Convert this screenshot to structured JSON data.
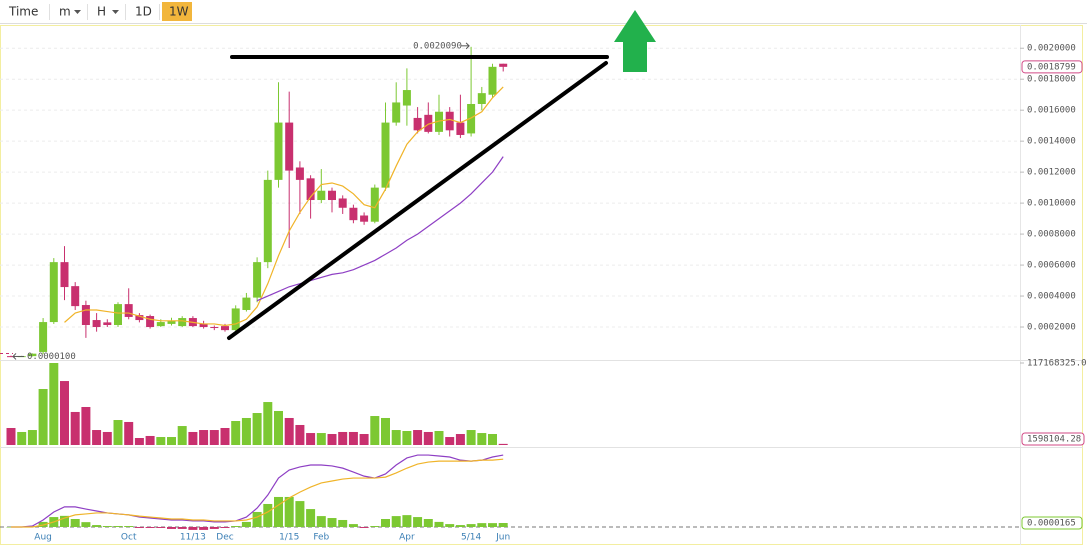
{
  "toolbar": {
    "items": [
      {
        "label": "Time"
      },
      {
        "label": "m",
        "dropdown": true
      },
      {
        "label": "H",
        "dropdown": true
      },
      {
        "label": "1D"
      },
      {
        "label": "1W",
        "active": true
      }
    ]
  },
  "chart_data": [
    {
      "type": "candlestick",
      "categories": [
        null,
        null,
        null,
        "Aug",
        null,
        null,
        null,
        null,
        null,
        null,
        null,
        "Oct",
        null,
        null,
        null,
        null,
        null,
        "11/13",
        null,
        null,
        "Dec",
        null,
        null,
        null,
        null,
        null,
        "1/15",
        null,
        null,
        "Feb",
        null,
        null,
        null,
        null,
        null,
        null,
        null,
        "Apr",
        null,
        null,
        null,
        null,
        null,
        "5/14",
        null,
        null,
        "Jun"
      ],
      "open": [
        1.2e-05,
        1.1e-05,
        1.2e-05,
        3.9e-05,
        0.000232,
        0.000619,
        0.000464,
        0.000342,
        0.000245,
        0.00023,
        0.000213,
        0.000348,
        0.000277,
        0.000271,
        0.000206,
        0.00022,
        0.000206,
        0.000258,
        0.00022,
        0.0002,
        0.000206,
        0.00018,
        0.00031,
        0.00039,
        0.000619,
        0.00115,
        0.00152,
        0.00123,
        0.00116,
        0.00102,
        0.00108,
        0.00103,
        0.00097,
        0.00092,
        0.00088,
        0.0011,
        0.00152,
        0.00163,
        0.00155,
        0.00157,
        0.00146,
        0.00159,
        0.00152,
        0.00145,
        0.00164,
        0.0017,
        0.0019
      ],
      "high": [
        1.5e-05,
        1.4e-05,
        3e-05,
        0.000258,
        0.000645,
        0.000722,
        0.00049,
        0.00037,
        0.00029,
        0.00025,
        0.00036,
        0.00045,
        0.00029,
        0.00028,
        0.00025,
        0.00026,
        0.00027,
        0.00027,
        0.00024,
        0.00021,
        0.00022,
        0.00034,
        0.00042,
        0.00065,
        0.00121,
        0.00178,
        0.00172,
        0.00127,
        0.00118,
        0.00122,
        0.0011,
        0.00105,
        0.00099,
        0.00094,
        0.00112,
        0.00165,
        0.00178,
        0.00187,
        0.00162,
        0.00165,
        0.0017,
        0.00162,
        0.0017,
        0.002009,
        0.00175,
        0.0019,
        0.0019
      ],
      "low": [
        1e-05,
        1e-05,
        1e-05,
        2.5e-05,
        0.00022,
        0.000374,
        0.00031,
        0.00013,
        0.00017,
        0.0002,
        0.0002,
        0.00025,
        0.00023,
        0.00019,
        0.0002,
        0.00021,
        0.0002,
        0.0002,
        0.00019,
        0.00018,
        0.00017,
        0.00017,
        0.0003,
        0.00036,
        0.00058,
        0.0011,
        0.00071,
        0.00093,
        0.0009,
        0.001,
        0.00094,
        0.00093,
        0.00087,
        0.00086,
        0.00087,
        0.00108,
        0.0015,
        0.0015,
        0.00145,
        0.00145,
        0.00144,
        0.00143,
        0.00142,
        0.00143,
        0.0016,
        0.00168,
        0.00185
      ],
      "close": [
        1.1e-05,
        1.2e-05,
        2.8e-05,
        0.000232,
        0.000619,
        0.000458,
        0.000335,
        0.000213,
        0.0002,
        0.000213,
        0.000348,
        0.000265,
        0.000245,
        0.0002,
        0.000232,
        0.00024,
        0.000258,
        0.000206,
        0.0002,
        0.000195,
        0.00018,
        0.00032,
        0.00039,
        0.000619,
        0.00115,
        0.00152,
        0.00121,
        0.00115,
        0.00102,
        0.00108,
        0.00102,
        0.00097,
        0.00089,
        0.00088,
        0.0011,
        0.00152,
        0.00165,
        0.00173,
        0.00147,
        0.00146,
        0.00159,
        0.00147,
        0.00144,
        0.00164,
        0.00171,
        0.00188,
        0.0018799
      ],
      "up_color": "#7cc832",
      "down_color": "#c8306e",
      "ylim": [
        0,
        0.00215
      ],
      "yticks": [
        {
          "value": 0.0002,
          "label": "0.0002000"
        },
        {
          "value": 0.0004,
          "label": "0.0004000"
        },
        {
          "value": 0.0006,
          "label": "0.0006000"
        },
        {
          "value": 0.0008,
          "label": "0.0008000"
        },
        {
          "value": 0.001,
          "label": "0.0010000"
        },
        {
          "value": 0.0012,
          "label": "0.0012000"
        },
        {
          "value": 0.0014,
          "label": "0.0014000"
        },
        {
          "value": 0.0016,
          "label": "0.0016000"
        },
        {
          "value": 0.0018,
          "label": "0.0018000"
        },
        {
          "value": 0.002,
          "label": "0.0020000"
        }
      ],
      "grid": true,
      "series": [
        {
          "color": "#f0b429",
          "values": [
            null,
            null,
            null,
            null,
            null,
            0.00023,
            0.00029,
            0.00031,
            0.00031,
            0.0003,
            0.00029,
            0.00029,
            0.00027,
            0.00025,
            0.00024,
            0.00024,
            0.00024,
            0.00023,
            0.00022,
            0.00022,
            0.00021,
            0.00022,
            0.00025,
            0.00033,
            0.00048,
            0.00066,
            0.00082,
            0.00094,
            0.00104,
            0.00112,
            0.00113,
            0.00111,
            0.00106,
            0.00099,
            0.00097,
            0.00109,
            0.00124,
            0.00138,
            0.00146,
            0.00151,
            0.00153,
            0.00154,
            0.00152,
            0.00155,
            0.00159,
            0.00168,
            0.00175
          ]
        },
        {
          "color": "#8e3fc4",
          "values": [
            null,
            null,
            null,
            null,
            null,
            null,
            null,
            null,
            null,
            null,
            null,
            null,
            null,
            null,
            null,
            null,
            null,
            null,
            null,
            null,
            null,
            null,
            null,
            0.00037,
            0.0004,
            0.00043,
            0.00046,
            0.00048,
            0.0005,
            0.00052,
            0.00054,
            0.00055,
            0.00057,
            0.0006,
            0.00063,
            0.00067,
            0.00071,
            0.00076,
            0.0008,
            0.00085,
            0.0009,
            0.00095,
            0.001,
            0.00106,
            0.00113,
            0.0012,
            0.0013
          ]
        }
      ],
      "annotations": [
        {
          "index": 43,
          "value": 0.002009,
          "label": "0.0020090"
        },
        {
          "index": 0,
          "value": 1e-05,
          "label": "0.0000100"
        }
      ]
    },
    {
      "type": "bar",
      "values": [
        24300000,
        18600000,
        21400000,
        80000000,
        117168325,
        91400000,
        47200000,
        54300000,
        21400000,
        18600000,
        35700000,
        32900000,
        10000000,
        12900000,
        11400000,
        11400000,
        27100000,
        18600000,
        21400000,
        21400000,
        24300000,
        34300000,
        38600000,
        45700000,
        61400000,
        48600000,
        38600000,
        28600000,
        17100000,
        17100000,
        15700000,
        18600000,
        18600000,
        15700000,
        41400000,
        38600000,
        21400000,
        20000000,
        21400000,
        18600000,
        20000000,
        11400000,
        15700000,
        21400000,
        17100000,
        15700000,
        1598104.28
      ],
      "ylim": [
        0,
        117168325
      ],
      "yticks": [
        {
          "value": 117168325,
          "label": "117168325.00"
        }
      ]
    },
    {
      "type": "line",
      "ylim": [
        -1.24e-05,
        0.000322
      ],
      "series": [
        {
          "color": "#8e3fc4",
          "values": [
            0,
            0,
            4e-06,
            2.9e-05,
            6.2e-05,
            8.3e-05,
            8.3e-05,
            7.4e-05,
            6.6e-05,
            5.8e-05,
            5.4e-05,
            5e-05,
            4.1e-05,
            3.7e-05,
            3.3e-05,
            2.9e-05,
            2.9e-05,
            2.5e-05,
            2.5e-05,
            2.1e-05,
            2.1e-05,
            2.5e-05,
            4.1e-05,
            7.8e-05,
            0.000132,
            0.000202,
            0.000235,
            0.000248,
            0.000256,
            0.000256,
            0.000252,
            0.000243,
            0.000227,
            0.00021,
            0.000202,
            0.000219,
            0.000256,
            0.000285,
            0.000297,
            0.000297,
            0.000293,
            0.000289,
            0.000276,
            0.000272,
            0.000276,
            0.000289,
            0.000297
          ]
        },
        {
          "color": "#f0b429",
          "values": [
            0,
            0,
            0,
            8e-06,
            2.1e-05,
            3.7e-05,
            5e-05,
            5.4e-05,
            5.8e-05,
            5.8e-05,
            5.4e-05,
            5e-05,
            4.5e-05,
            4.1e-05,
            3.7e-05,
            3.3e-05,
            3.3e-05,
            2.9e-05,
            2.9e-05,
            2.5e-05,
            2.5e-05,
            2.5e-05,
            2.9e-05,
            4.1e-05,
            6.2e-05,
            9.1e-05,
            0.00012,
            0.000144,
            0.000165,
            0.000182,
            0.00019,
            0.000198,
            0.000202,
            0.000202,
            0.000202,
            0.000206,
            0.000223,
            0.000243,
            0.00026,
            0.000268,
            0.000272,
            0.000272,
            0.000272,
            0.000272,
            0.000276,
            0.000276,
            0.00028
          ]
        }
      ],
      "histogram": [
        0,
        0,
        4e-06,
        2.1e-05,
        4.1e-05,
        4.6e-05,
        3.3e-05,
        2e-05,
        8e-06,
        4e-06,
        4e-06,
        4e-06,
        -4e-06,
        -4e-06,
        -4e-06,
        -8e-06,
        -8e-06,
        -1.2e-05,
        -1.2e-05,
        -8e-06,
        -4e-06,
        4e-06,
        2.1e-05,
        6.2e-05,
        9.5e-05,
        0.000124,
        0.000124,
        0.000107,
        7.4e-05,
        4.5e-05,
        3.7e-05,
        2.9e-05,
        1.2e-05,
        -4e-06,
        4e-06,
        3.3e-05,
        4.5e-05,
        4.9e-05,
        4.1e-05,
        3.3e-05,
        2.1e-05,
        1.2e-05,
        8e-06,
        1.2e-05,
        1.6e-05,
        1.6e-05,
        1.65e-05
      ],
      "zero_line": true
    }
  ]
}
